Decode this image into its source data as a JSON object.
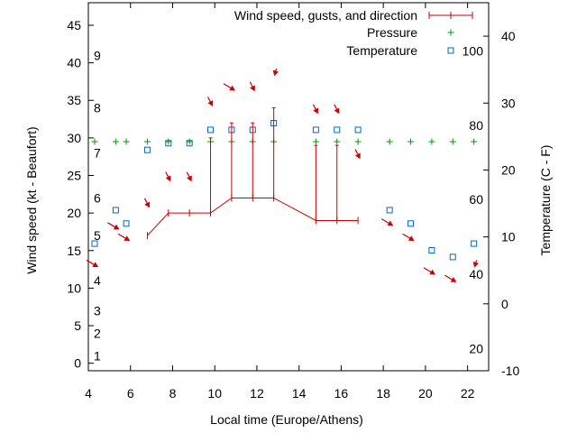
{
  "chart_data": {
    "type": "line",
    "xlabel": "Local time (Europe/Athens)",
    "ylabel_left": "Wind speed (kt - Beaufort)",
    "ylabel_right": "Temperature (C - F)",
    "xlim": [
      4,
      23
    ],
    "ylim_left": [
      -1,
      48
    ],
    "ylim_right": [
      -10,
      45
    ],
    "x_ticks": [
      4,
      6,
      8,
      10,
      12,
      14,
      16,
      18,
      20,
      22
    ],
    "y_left_ticks": [
      0,
      5,
      10,
      15,
      20,
      25,
      30,
      35,
      40,
      45
    ],
    "y_right_ticks": [
      -10,
      0,
      10,
      20,
      30,
      40
    ],
    "beaufort_labels": [
      {
        "label": "1",
        "kt": 1
      },
      {
        "label": "2",
        "kt": 4
      },
      {
        "label": "3",
        "kt": 7
      },
      {
        "label": "4",
        "kt": 11
      },
      {
        "label": "5",
        "kt": 17
      },
      {
        "label": "6",
        "kt": 22
      },
      {
        "label": "7",
        "kt": 28
      },
      {
        "label": "8",
        "kt": 34
      },
      {
        "label": "9",
        "kt": 41
      }
    ],
    "fahrenheit_labels": [
      {
        "label": "20",
        "c": -6.7
      },
      {
        "label": "40",
        "c": 4.4
      },
      {
        "label": "60",
        "c": 15.6
      },
      {
        "label": "80",
        "c": 26.7
      },
      {
        "label": "100",
        "c": 37.8
      }
    ],
    "legend": [
      {
        "label": "Wind speed, gusts, and direction",
        "color": "#cc0000"
      },
      {
        "label": "Pressure",
        "color": "#009900"
      },
      {
        "label": "Temperature",
        "color": "#0066cc"
      }
    ],
    "wind": {
      "x": [
        6.8,
        7.8,
        8.8,
        9.8,
        10.8,
        11.8,
        12.8,
        14.8,
        15.8,
        16.8
      ],
      "speed": [
        17,
        20,
        20,
        20,
        22,
        22,
        22,
        19,
        19,
        19
      ],
      "gust": [
        null,
        null,
        null,
        30,
        32,
        32,
        34,
        29,
        29,
        null
      ]
    },
    "wind_arrows": [
      {
        "x": 4.3,
        "y": 13,
        "dir": "NW"
      },
      {
        "x": 5.3,
        "y": 18,
        "dir": "NW"
      },
      {
        "x": 5.8,
        "y": 16.5,
        "dir": "NW"
      },
      {
        "x": 6.8,
        "y": 21,
        "dir": "N"
      },
      {
        "x": 7.8,
        "y": 24.5,
        "dir": "N"
      },
      {
        "x": 8.8,
        "y": 24.5,
        "dir": "N"
      },
      {
        "x": 9.8,
        "y": 34.5,
        "dir": "N"
      },
      {
        "x": 10.8,
        "y": 36.5,
        "dir": "NW"
      },
      {
        "x": 11.8,
        "y": 36.5,
        "dir": "N"
      },
      {
        "x": 12.8,
        "y": 38.5,
        "dir": "NE"
      },
      {
        "x": 14.8,
        "y": 33.5,
        "dir": "N"
      },
      {
        "x": 15.8,
        "y": 33.5,
        "dir": "N"
      },
      {
        "x": 16.8,
        "y": 27.5,
        "dir": "N"
      },
      {
        "x": 18.3,
        "y": 18.5,
        "dir": "NW"
      },
      {
        "x": 19.3,
        "y": 16.5,
        "dir": "NW"
      },
      {
        "x": 20.3,
        "y": 12,
        "dir": "NW"
      },
      {
        "x": 21.3,
        "y": 11,
        "dir": "NW"
      },
      {
        "x": 22.3,
        "y": 13,
        "dir": "NE"
      }
    ],
    "pressure": {
      "x": [
        4.3,
        5.3,
        5.8,
        6.8,
        7.8,
        8.8,
        9.8,
        10.8,
        11.8,
        12.8,
        14.8,
        15.8,
        16.8,
        18.3,
        19.3,
        20.3,
        21.3,
        22.3
      ],
      "y": [
        29.5,
        29.5,
        29.5,
        29.5,
        29.5,
        29.5,
        29.5,
        29.5,
        29.5,
        29.5,
        29.5,
        29.5,
        29.5,
        29.5,
        29.5,
        29.5,
        29.5,
        29.5
      ]
    },
    "temperature": {
      "x": [
        4.3,
        5.3,
        5.8,
        6.8,
        7.8,
        8.8,
        9.8,
        10.8,
        11.8,
        12.8,
        14.8,
        15.8,
        16.8,
        18.3,
        19.3,
        20.3,
        21.3,
        22.3
      ],
      "y": [
        9,
        14,
        12,
        23,
        24,
        24,
        26,
        26,
        26,
        27,
        26,
        26,
        26,
        14,
        12,
        8,
        7,
        9
      ]
    }
  }
}
